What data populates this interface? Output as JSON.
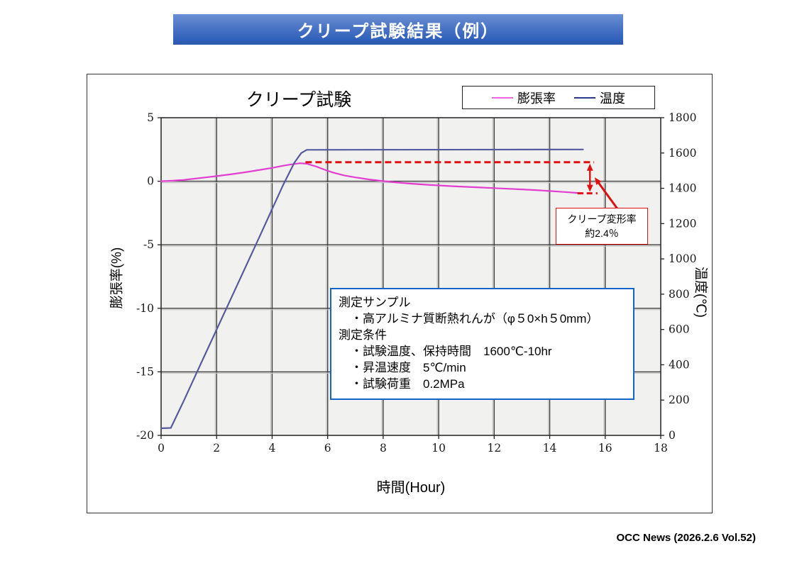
{
  "banner": {
    "title": "クリープ試験結果（例）"
  },
  "footer": {
    "credit": "OCC News (2026.2.6 Vol.52)"
  },
  "chart_data": {
    "type": "line",
    "title": "クリープ試験",
    "xlabel": "時間(Hour)",
    "ylabel_left": "膨張率(%)",
    "ylabel_right": "温度(℃)",
    "xlim": [
      0,
      18
    ],
    "xticks": [
      0,
      2,
      4,
      6,
      8,
      10,
      12,
      14,
      16,
      18
    ],
    "ylim_left": [
      -20,
      5
    ],
    "yticks_left": [
      5,
      0,
      -5,
      -10,
      -15,
      -20
    ],
    "ylim_right": [
      0,
      1800
    ],
    "yticks_right": [
      1800,
      1600,
      1400,
      1200,
      1000,
      800,
      600,
      400,
      200,
      0
    ],
    "grid": true,
    "legend_position": "top-right",
    "legend": [
      {
        "label": "膨張率",
        "color": "#ee66dd"
      },
      {
        "label": "温度",
        "color": "#2b3a8f"
      }
    ],
    "series": [
      {
        "name": "膨張率",
        "axis": "left",
        "color": "#e23ed0",
        "points": [
          [
            0,
            0
          ],
          [
            0.4,
            0.04
          ],
          [
            0.8,
            0.1
          ],
          [
            1.2,
            0.2
          ],
          [
            1.6,
            0.3
          ],
          [
            2,
            0.4
          ],
          [
            2.5,
            0.54
          ],
          [
            3,
            0.7
          ],
          [
            3.5,
            0.87
          ],
          [
            4,
            1.05
          ],
          [
            4.4,
            1.22
          ],
          [
            4.7,
            1.33
          ],
          [
            5,
            1.42
          ],
          [
            5.25,
            1.38
          ],
          [
            5.6,
            1.15
          ],
          [
            5.9,
            0.9
          ],
          [
            6.2,
            0.68
          ],
          [
            6.6,
            0.46
          ],
          [
            7,
            0.3
          ],
          [
            7.5,
            0.14
          ],
          [
            8,
            0.01
          ],
          [
            8.5,
            -0.1
          ],
          [
            9,
            -0.19
          ],
          [
            9.5,
            -0.27
          ],
          [
            10,
            -0.33
          ],
          [
            10.5,
            -0.39
          ],
          [
            11,
            -0.44
          ],
          [
            11.5,
            -0.49
          ],
          [
            12,
            -0.54
          ],
          [
            12.5,
            -0.59
          ],
          [
            13,
            -0.64
          ],
          [
            13.5,
            -0.7
          ],
          [
            14,
            -0.77
          ],
          [
            14.5,
            -0.84
          ],
          [
            15,
            -0.92
          ],
          [
            15.2,
            -0.95
          ]
        ]
      },
      {
        "name": "温度",
        "axis": "right",
        "color": "#565a9e",
        "points": [
          [
            0,
            40
          ],
          [
            0.35,
            42
          ],
          [
            0.8,
            190
          ],
          [
            1.5,
            430
          ],
          [
            2.5,
            770
          ],
          [
            3.5,
            1110
          ],
          [
            4.4,
            1420
          ],
          [
            4.8,
            1545
          ],
          [
            5.05,
            1600
          ],
          [
            5.25,
            1618
          ],
          [
            15.2,
            1620
          ]
        ]
      }
    ],
    "annotation": {
      "label_line1": "クリープ変形率",
      "label_line2": "約2.4％",
      "color": "#dd1111",
      "dash_top_value": 1.5,
      "dash_top_x": [
        5.2,
        15.6
      ],
      "dash_bottom_value": -0.95,
      "dash_bottom_x": [
        15.0,
        15.72
      ],
      "arrow_x": 15.45,
      "pointer_tail": [
        16.45,
        -2.2
      ],
      "pointer_head": [
        15.62,
        0.3
      ]
    },
    "info_box": {
      "border_color": "#1565c8",
      "lines": [
        "測定サンプル",
        "　・高アルミナ質断熱れんが（φ５0×h５0mm）",
        "測定条件",
        "　・試験温度、保持時間　1600℃-10hr",
        "　・昇温速度　5℃/min",
        "　・試験荷重　0.2MPa"
      ]
    }
  }
}
